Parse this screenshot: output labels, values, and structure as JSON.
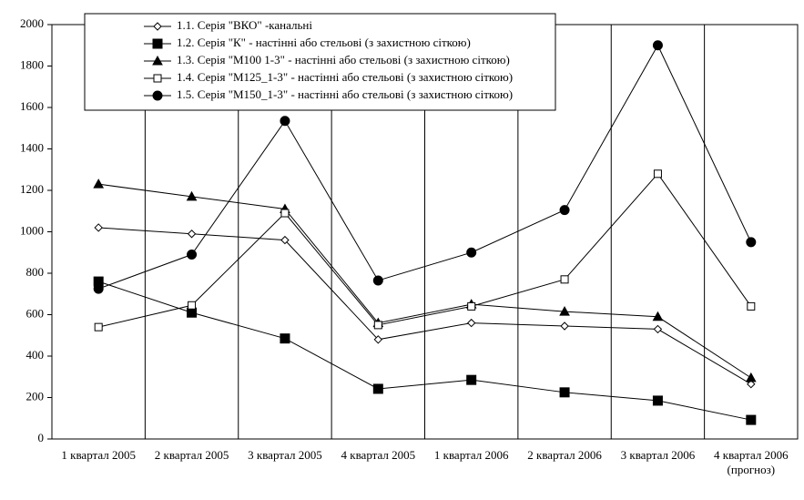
{
  "chart_data": {
    "type": "line",
    "categories": [
      "1 квартал 2005",
      "2 квартал 2005",
      "3 квартал 2005",
      "4 квартал 2005",
      "1 квартал 2006",
      "2 квартал 2006",
      "3 квартал 2006",
      "4 квартал 2006\n(прогноз)"
    ],
    "series": [
      {
        "name": "1.1. Серія \"ВКО\" -канальні",
        "color": "#000000",
        "marker": "diamond-open",
        "values": [
          1020,
          990,
          960,
          480,
          560,
          545,
          530,
          265
        ]
      },
      {
        "name": "1.2. Серія \"К\" - настінні або стельові (з захистною сіткою)",
        "color": "#000000",
        "marker": "square",
        "values": [
          760,
          610,
          485,
          242,
          285,
          225,
          185,
          92
        ]
      },
      {
        "name": "1.3. Серія \"М100 1-3\" - настінні або стельові (з захистною сіткою)",
        "color": "#000000",
        "marker": "triangle",
        "values": [
          1230,
          1170,
          1110,
          560,
          650,
          615,
          590,
          295
        ]
      },
      {
        "name": "1.4. Серія \"М125_1-3\" - настінні або стельові (з захистною сіткою)",
        "color": "#000000",
        "marker": "square-open",
        "values": [
          540,
          645,
          1090,
          550,
          640,
          770,
          1280,
          640
        ]
      },
      {
        "name": "1.5. Серія \"М150_1-3\" - настінні або стельові (з захистною сіткою)",
        "color": "#000000",
        "marker": "circle",
        "values": [
          725,
          890,
          1535,
          765,
          900,
          1105,
          1900,
          950
        ]
      }
    ],
    "ylim": [
      0,
      2000
    ],
    "yticks": [
      0,
      200,
      400,
      600,
      800,
      1000,
      1200,
      1400,
      1600,
      1800,
      2000
    ]
  }
}
